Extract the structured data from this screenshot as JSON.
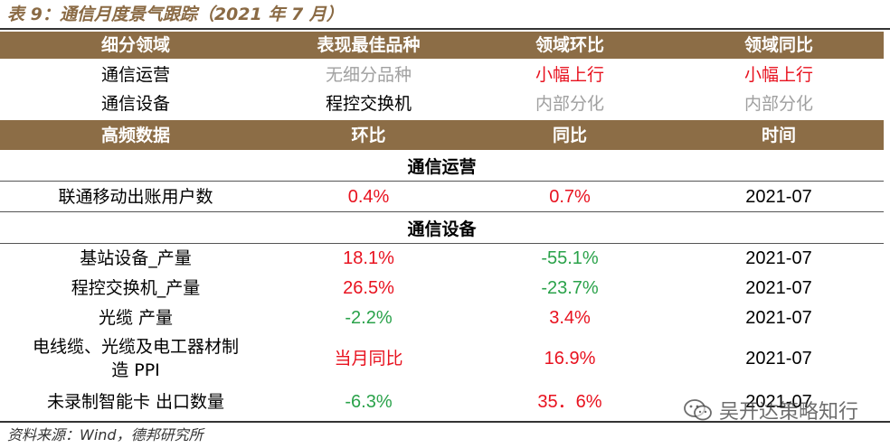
{
  "title": "表 9：通信月度景气跟踪（2021 年 7 月）",
  "header1": [
    "细分领域",
    "表现最佳品种",
    "领域环比",
    "领域同比"
  ],
  "rows1": [
    {
      "sector": "通信运营",
      "best": "无细分品种",
      "mom": "小幅上行",
      "yoy": "小幅上行"
    },
    {
      "sector": "通信设备",
      "best": "程控交换机",
      "mom": "内部分化",
      "yoy": "内部分化"
    }
  ],
  "header2": [
    "高频数据",
    "环比",
    "同比",
    "时间"
  ],
  "sections": [
    {
      "name": "通信运营",
      "rows": [
        {
          "item": "联通移动出账用户数",
          "mom": "0.4%",
          "yoy": "0.7%",
          "time": "2021-07"
        }
      ]
    },
    {
      "name": "通信设备",
      "rows": [
        {
          "item": "基站设备_产量",
          "mom": "18.1%",
          "yoy": "-55.1%",
          "time": "2021-07"
        },
        {
          "item": "程控交换机_产量",
          "mom": "26.5%",
          "yoy": "-23.7%",
          "time": "2021-07"
        },
        {
          "item": "光缆 产量",
          "mom": "-2.2%",
          "yoy": "3.4%",
          "time": "2021-07"
        },
        {
          "item": "电线缆、光缆及电工器材制造 PPI",
          "item_line1": "电线缆、光缆及电工器材制",
          "item_line2": "造 PPI",
          "mom": "当月同比",
          "yoy": "16.9%",
          "time": "2021-07"
        },
        {
          "item": "未录制智能卡 出口数量",
          "mom": "-6.3%",
          "yoy": "35．6%",
          "time": "2021-07"
        }
      ]
    }
  ],
  "source": "资料来源：Wind，德邦研究所",
  "watermark": "吴开达策略知行",
  "colors": {
    "header_bg": "#8c6d46",
    "title": "#8a6a44",
    "red": "#e8121f",
    "green": "#2aa24a",
    "grey": "#a0a0a0"
  }
}
